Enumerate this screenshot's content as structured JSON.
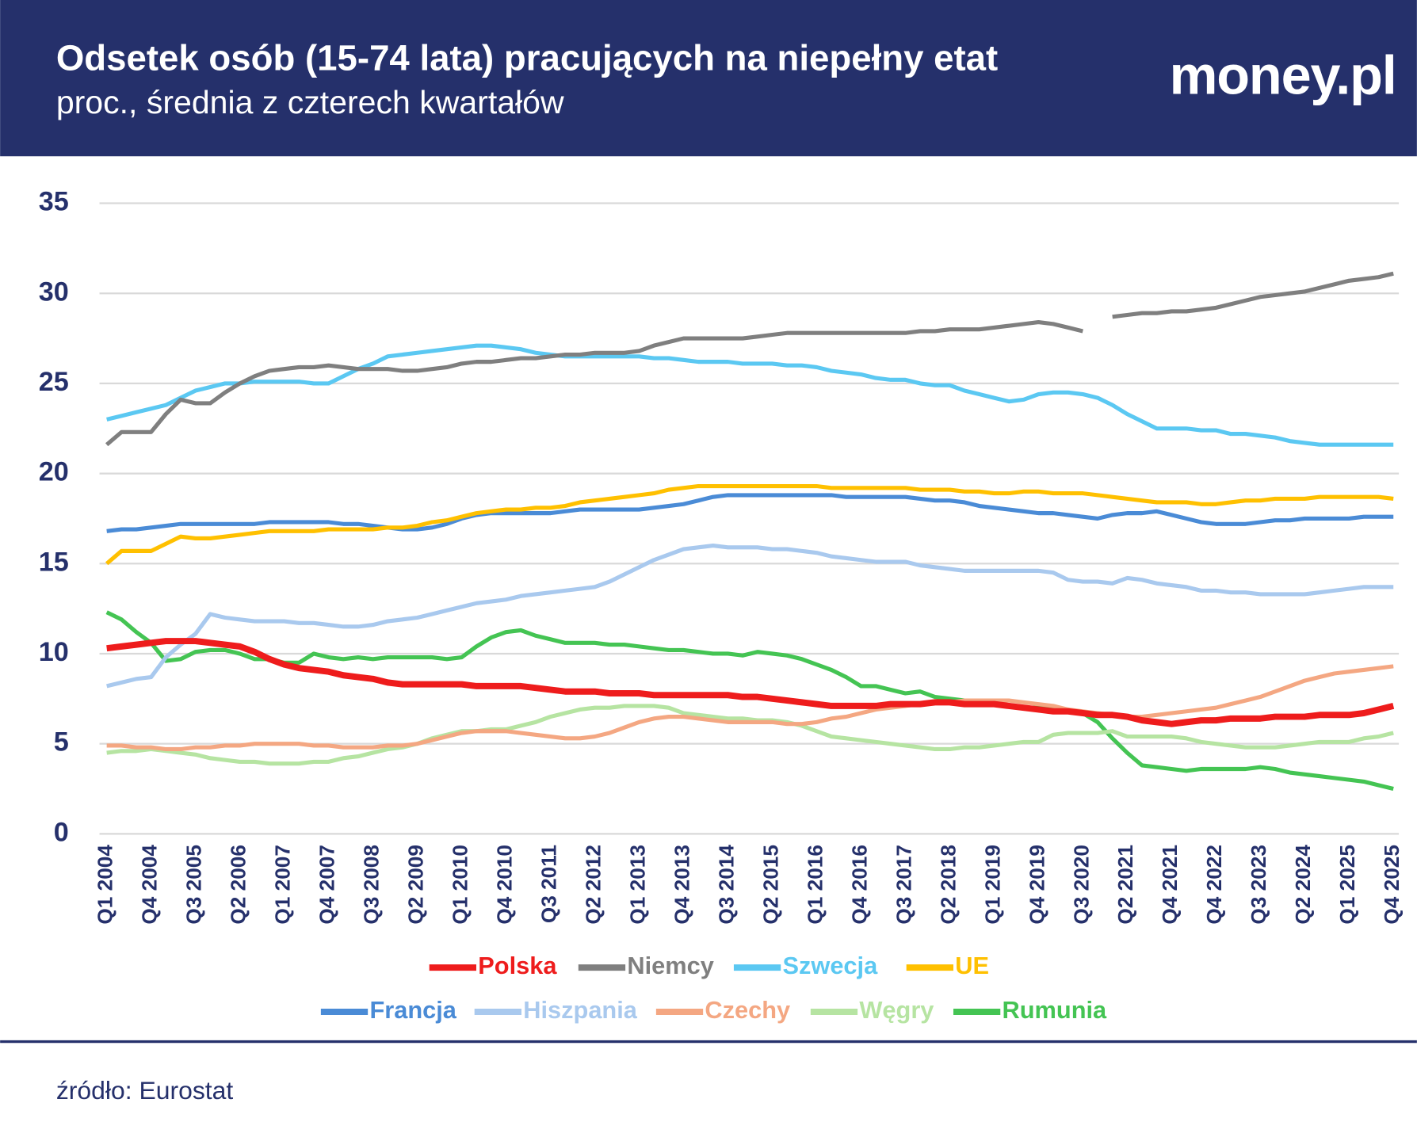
{
  "chart_data": {
    "type": "line",
    "title": "Odsetek osób (15-74 lata) pracujących na niepełny etat",
    "subtitle": "proc., średnia z czterech kwartałów",
    "logo": "money.pl",
    "source": "źródło: Eurostat",
    "categories": [
      "Q1 2004",
      null,
      null,
      "Q4 2004",
      null,
      null,
      "Q3 2005",
      null,
      null,
      "Q2 2006",
      null,
      null,
      "Q1 2007",
      null,
      null,
      "Q4 2007",
      null,
      null,
      "Q3 2008",
      null,
      null,
      "Q2 2009",
      null,
      null,
      "Q1 2010",
      null,
      null,
      "Q4 2010",
      null,
      null,
      "Q3 2011",
      null,
      null,
      "Q2 2012",
      null,
      null,
      "Q1 2013",
      null,
      null,
      "Q4 2013",
      null,
      null,
      "Q3 2014",
      null,
      null,
      "Q2 2015",
      null,
      null,
      "Q1 2016",
      null,
      null,
      "Q4 2016",
      null,
      null,
      "Q3 2017",
      null,
      null,
      "Q2 2018",
      null,
      null,
      "Q1 2019",
      null,
      null,
      "Q4 2019",
      null,
      null,
      "Q3 2020",
      null,
      null,
      "Q2 2021",
      null,
      null,
      "Q4 2021",
      null,
      null,
      "Q4 2022",
      null,
      null,
      "Q3 2023",
      null,
      null,
      "Q2 2024",
      null,
      null,
      "Q1 2025",
      null,
      null,
      "Q4 2025"
    ],
    "ylim": [
      0,
      35
    ],
    "yticks": [
      0,
      5,
      10,
      15,
      20,
      25,
      30,
      35
    ],
    "grid": true,
    "legend": "bottom",
    "series": [
      {
        "name": "Polska",
        "color": "#ee1c1c",
        "values": [
          10.3,
          10.4,
          10.5,
          10.6,
          10.7,
          10.7,
          10.7,
          10.6,
          10.5,
          10.4,
          10.1,
          9.7,
          9.4,
          9.2,
          9.1,
          9.0,
          8.8,
          8.7,
          8.6,
          8.4,
          8.3,
          8.3,
          8.3,
          8.3,
          8.3,
          8.2,
          8.2,
          8.2,
          8.2,
          8.1,
          8.0,
          7.9,
          7.9,
          7.9,
          7.8,
          7.8,
          7.8,
          7.7,
          7.7,
          7.7,
          7.7,
          7.7,
          7.7,
          7.6,
          7.6,
          7.5,
          7.4,
          7.3,
          7.2,
          7.1,
          7.1,
          7.1,
          7.1,
          7.2,
          7.2,
          7.2,
          7.3,
          7.3,
          7.2,
          7.2,
          7.2,
          7.1,
          7.0,
          6.9,
          6.8,
          6.8,
          6.7,
          6.6,
          6.6,
          6.5,
          6.3,
          6.2,
          6.1,
          6.2,
          6.3,
          6.3,
          6.4,
          6.4,
          6.4,
          6.5,
          6.5,
          6.5,
          6.6,
          6.6,
          6.6,
          6.7,
          6.9,
          7.1
        ]
      },
      {
        "name": "Niemcy",
        "color": "#7f7f7f",
        "values": [
          21.6,
          22.3,
          22.3,
          22.3,
          23.3,
          24.1,
          23.9,
          23.9,
          24.5,
          25.0,
          25.4,
          25.7,
          25.8,
          25.9,
          25.9,
          26.0,
          25.9,
          25.8,
          25.8,
          25.8,
          25.7,
          25.7,
          25.8,
          25.9,
          26.1,
          26.2,
          26.2,
          26.3,
          26.4,
          26.4,
          26.5,
          26.6,
          26.6,
          26.7,
          26.7,
          26.7,
          26.8,
          27.1,
          27.3,
          27.5,
          27.5,
          27.5,
          27.5,
          27.5,
          27.6,
          27.7,
          27.8,
          27.8,
          27.8,
          27.8,
          27.8,
          27.8,
          27.8,
          27.8,
          27.8,
          27.9,
          27.9,
          28.0,
          28.0,
          28.0,
          28.1,
          28.2,
          28.3,
          28.4,
          28.3,
          28.1,
          27.9,
          null,
          28.7,
          28.8,
          28.9,
          28.9,
          29.0,
          29.0,
          29.1,
          29.2,
          29.4,
          29.6,
          29.8,
          29.9,
          30.0,
          30.1,
          30.3,
          30.5,
          30.7,
          30.8,
          30.9,
          31.1
        ]
      },
      {
        "name": "Szwecja",
        "color": "#5bc8f2",
        "values": [
          23.0,
          23.2,
          23.4,
          23.6,
          23.8,
          24.2,
          24.6,
          24.8,
          25.0,
          25.0,
          25.1,
          25.1,
          25.1,
          25.1,
          25.0,
          25.0,
          25.4,
          25.8,
          26.1,
          26.5,
          26.6,
          26.7,
          26.8,
          26.9,
          27.0,
          27.1,
          27.1,
          27.0,
          26.9,
          26.7,
          26.6,
          26.5,
          26.5,
          26.5,
          26.5,
          26.5,
          26.5,
          26.4,
          26.4,
          26.3,
          26.2,
          26.2,
          26.2,
          26.1,
          26.1,
          26.1,
          26.0,
          26.0,
          25.9,
          25.7,
          25.6,
          25.5,
          25.3,
          25.2,
          25.2,
          25.0,
          24.9,
          24.9,
          24.6,
          24.4,
          24.2,
          24.0,
          24.1,
          24.4,
          24.5,
          24.5,
          24.4,
          24.2,
          23.8,
          23.3,
          22.9,
          22.5,
          22.5,
          22.5,
          22.4,
          22.4,
          22.2,
          22.2,
          22.1,
          22.0,
          21.8,
          21.7,
          21.6,
          21.6,
          21.6,
          21.6,
          21.6,
          21.6
        ]
      },
      {
        "name": "UE",
        "color": "#ffc000",
        "values": [
          15.0,
          15.7,
          15.7,
          15.7,
          16.1,
          16.5,
          16.4,
          16.4,
          16.5,
          16.6,
          16.7,
          16.8,
          16.8,
          16.8,
          16.8,
          16.9,
          16.9,
          16.9,
          16.9,
          17.0,
          17.0,
          17.1,
          17.3,
          17.4,
          17.6,
          17.8,
          17.9,
          18.0,
          18.0,
          18.1,
          18.1,
          18.2,
          18.4,
          18.5,
          18.6,
          18.7,
          18.8,
          18.9,
          19.1,
          19.2,
          19.3,
          19.3,
          19.3,
          19.3,
          19.3,
          19.3,
          19.3,
          19.3,
          19.3,
          19.2,
          19.2,
          19.2,
          19.2,
          19.2,
          19.2,
          19.1,
          19.1,
          19.1,
          19.0,
          19.0,
          18.9,
          18.9,
          19.0,
          19.0,
          18.9,
          18.9,
          18.9,
          18.8,
          18.7,
          18.6,
          18.5,
          18.4,
          18.4,
          18.4,
          18.3,
          18.3,
          18.4,
          18.5,
          18.5,
          18.6,
          18.6,
          18.6,
          18.7,
          18.7,
          18.7,
          18.7,
          18.7,
          18.6
        ]
      },
      {
        "name": "Francja",
        "color": "#4a8bd6",
        "values": [
          16.8,
          16.9,
          16.9,
          17.0,
          17.1,
          17.2,
          17.2,
          17.2,
          17.2,
          17.2,
          17.2,
          17.3,
          17.3,
          17.3,
          17.3,
          17.3,
          17.2,
          17.2,
          17.1,
          17.0,
          16.9,
          16.9,
          17.0,
          17.2,
          17.5,
          17.7,
          17.8,
          17.8,
          17.8,
          17.8,
          17.8,
          17.9,
          18.0,
          18.0,
          18.0,
          18.0,
          18.0,
          18.1,
          18.2,
          18.3,
          18.5,
          18.7,
          18.8,
          18.8,
          18.8,
          18.8,
          18.8,
          18.8,
          18.8,
          18.8,
          18.7,
          18.7,
          18.7,
          18.7,
          18.7,
          18.6,
          18.5,
          18.5,
          18.4,
          18.2,
          18.1,
          18.0,
          17.9,
          17.8,
          17.8,
          17.7,
          17.6,
          17.5,
          17.7,
          17.8,
          17.8,
          17.9,
          17.7,
          17.5,
          17.3,
          17.2,
          17.2,
          17.2,
          17.3,
          17.4,
          17.4,
          17.5,
          17.5,
          17.5,
          17.5,
          17.6,
          17.6,
          17.6
        ]
      },
      {
        "name": "Hiszpania",
        "color": "#a9c9ee",
        "values": [
          8.2,
          8.4,
          8.6,
          8.7,
          9.8,
          10.5,
          11.1,
          12.2,
          12.0,
          11.9,
          11.8,
          11.8,
          11.8,
          11.7,
          11.7,
          11.6,
          11.5,
          11.5,
          11.6,
          11.8,
          11.9,
          12.0,
          12.2,
          12.4,
          12.6,
          12.8,
          12.9,
          13.0,
          13.2,
          13.3,
          13.4,
          13.5,
          13.6,
          13.7,
          14.0,
          14.4,
          14.8,
          15.2,
          15.5,
          15.8,
          15.9,
          16.0,
          15.9,
          15.9,
          15.9,
          15.8,
          15.8,
          15.7,
          15.6,
          15.4,
          15.3,
          15.2,
          15.1,
          15.1,
          15.1,
          14.9,
          14.8,
          14.7,
          14.6,
          14.6,
          14.6,
          14.6,
          14.6,
          14.6,
          14.5,
          14.1,
          14.0,
          14.0,
          13.9,
          14.2,
          14.1,
          13.9,
          13.8,
          13.7,
          13.5,
          13.5,
          13.4,
          13.4,
          13.3,
          13.3,
          13.3,
          13.3,
          13.4,
          13.5,
          13.6,
          13.7,
          13.7,
          13.7
        ]
      },
      {
        "name": "Czechy",
        "color": "#f4a782",
        "values": [
          4.9,
          4.9,
          4.8,
          4.8,
          4.7,
          4.7,
          4.8,
          4.8,
          4.9,
          4.9,
          5.0,
          5.0,
          5.0,
          5.0,
          4.9,
          4.9,
          4.8,
          4.8,
          4.8,
          4.9,
          4.9,
          5.0,
          5.2,
          5.4,
          5.6,
          5.7,
          5.7,
          5.7,
          5.6,
          5.5,
          5.4,
          5.3,
          5.3,
          5.4,
          5.6,
          5.9,
          6.2,
          6.4,
          6.5,
          6.5,
          6.4,
          6.3,
          6.2,
          6.2,
          6.2,
          6.2,
          6.1,
          6.1,
          6.2,
          6.4,
          6.5,
          6.7,
          6.9,
          7.0,
          7.1,
          7.2,
          7.3,
          7.3,
          7.4,
          7.4,
          7.4,
          7.4,
          7.3,
          7.2,
          7.1,
          6.9,
          6.8,
          6.7,
          6.6,
          6.5,
          6.5,
          6.6,
          6.7,
          6.8,
          6.9,
          7.0,
          7.2,
          7.4,
          7.6,
          7.9,
          8.2,
          8.5,
          8.7,
          8.9,
          9.0,
          9.1,
          9.2,
          9.3
        ]
      },
      {
        "name": "Węgry",
        "color": "#b6e4a2",
        "values": [
          4.5,
          4.6,
          4.6,
          4.7,
          4.6,
          4.5,
          4.4,
          4.2,
          4.1,
          4.0,
          4.0,
          3.9,
          3.9,
          3.9,
          4.0,
          4.0,
          4.2,
          4.3,
          4.5,
          4.7,
          4.8,
          5.0,
          5.3,
          5.5,
          5.7,
          5.7,
          5.8,
          5.8,
          6.0,
          6.2,
          6.5,
          6.7,
          6.9,
          7.0,
          7.0,
          7.1,
          7.1,
          7.1,
          7.0,
          6.7,
          6.6,
          6.5,
          6.4,
          6.4,
          6.3,
          6.3,
          6.2,
          6.0,
          5.7,
          5.4,
          5.3,
          5.2,
          5.1,
          5.0,
          4.9,
          4.8,
          4.7,
          4.7,
          4.8,
          4.8,
          4.9,
          5.0,
          5.1,
          5.1,
          5.5,
          5.6,
          5.6,
          5.6,
          5.7,
          5.4,
          5.4,
          5.4,
          5.4,
          5.3,
          5.1,
          5.0,
          4.9,
          4.8,
          4.8,
          4.8,
          4.9,
          5.0,
          5.1,
          5.1,
          5.1,
          5.3,
          5.4,
          5.6
        ]
      },
      {
        "name": "Rumunia",
        "color": "#44c453",
        "values": [
          12.3,
          11.9,
          11.2,
          10.6,
          9.6,
          9.7,
          10.1,
          10.2,
          10.2,
          10.0,
          9.7,
          9.7,
          9.5,
          9.5,
          10.0,
          9.8,
          9.7,
          9.8,
          9.7,
          9.8,
          9.8,
          9.8,
          9.8,
          9.7,
          9.8,
          10.4,
          10.9,
          11.2,
          11.3,
          11.0,
          10.8,
          10.6,
          10.6,
          10.6,
          10.5,
          10.5,
          10.4,
          10.3,
          10.2,
          10.2,
          10.1,
          10.0,
          10.0,
          9.9,
          10.1,
          10.0,
          9.9,
          9.7,
          9.4,
          9.1,
          8.7,
          8.2,
          8.2,
          8.0,
          7.8,
          7.9,
          7.6,
          7.5,
          7.4,
          7.3,
          7.2,
          7.1,
          7.0,
          7.0,
          6.9,
          6.8,
          6.7,
          6.2,
          5.3,
          4.5,
          3.8,
          3.7,
          3.6,
          3.5,
          3.6,
          3.6,
          3.6,
          3.6,
          3.7,
          3.6,
          3.4,
          3.3,
          3.2,
          3.1,
          3.0,
          2.9,
          2.7,
          2.5
        ]
      }
    ]
  }
}
